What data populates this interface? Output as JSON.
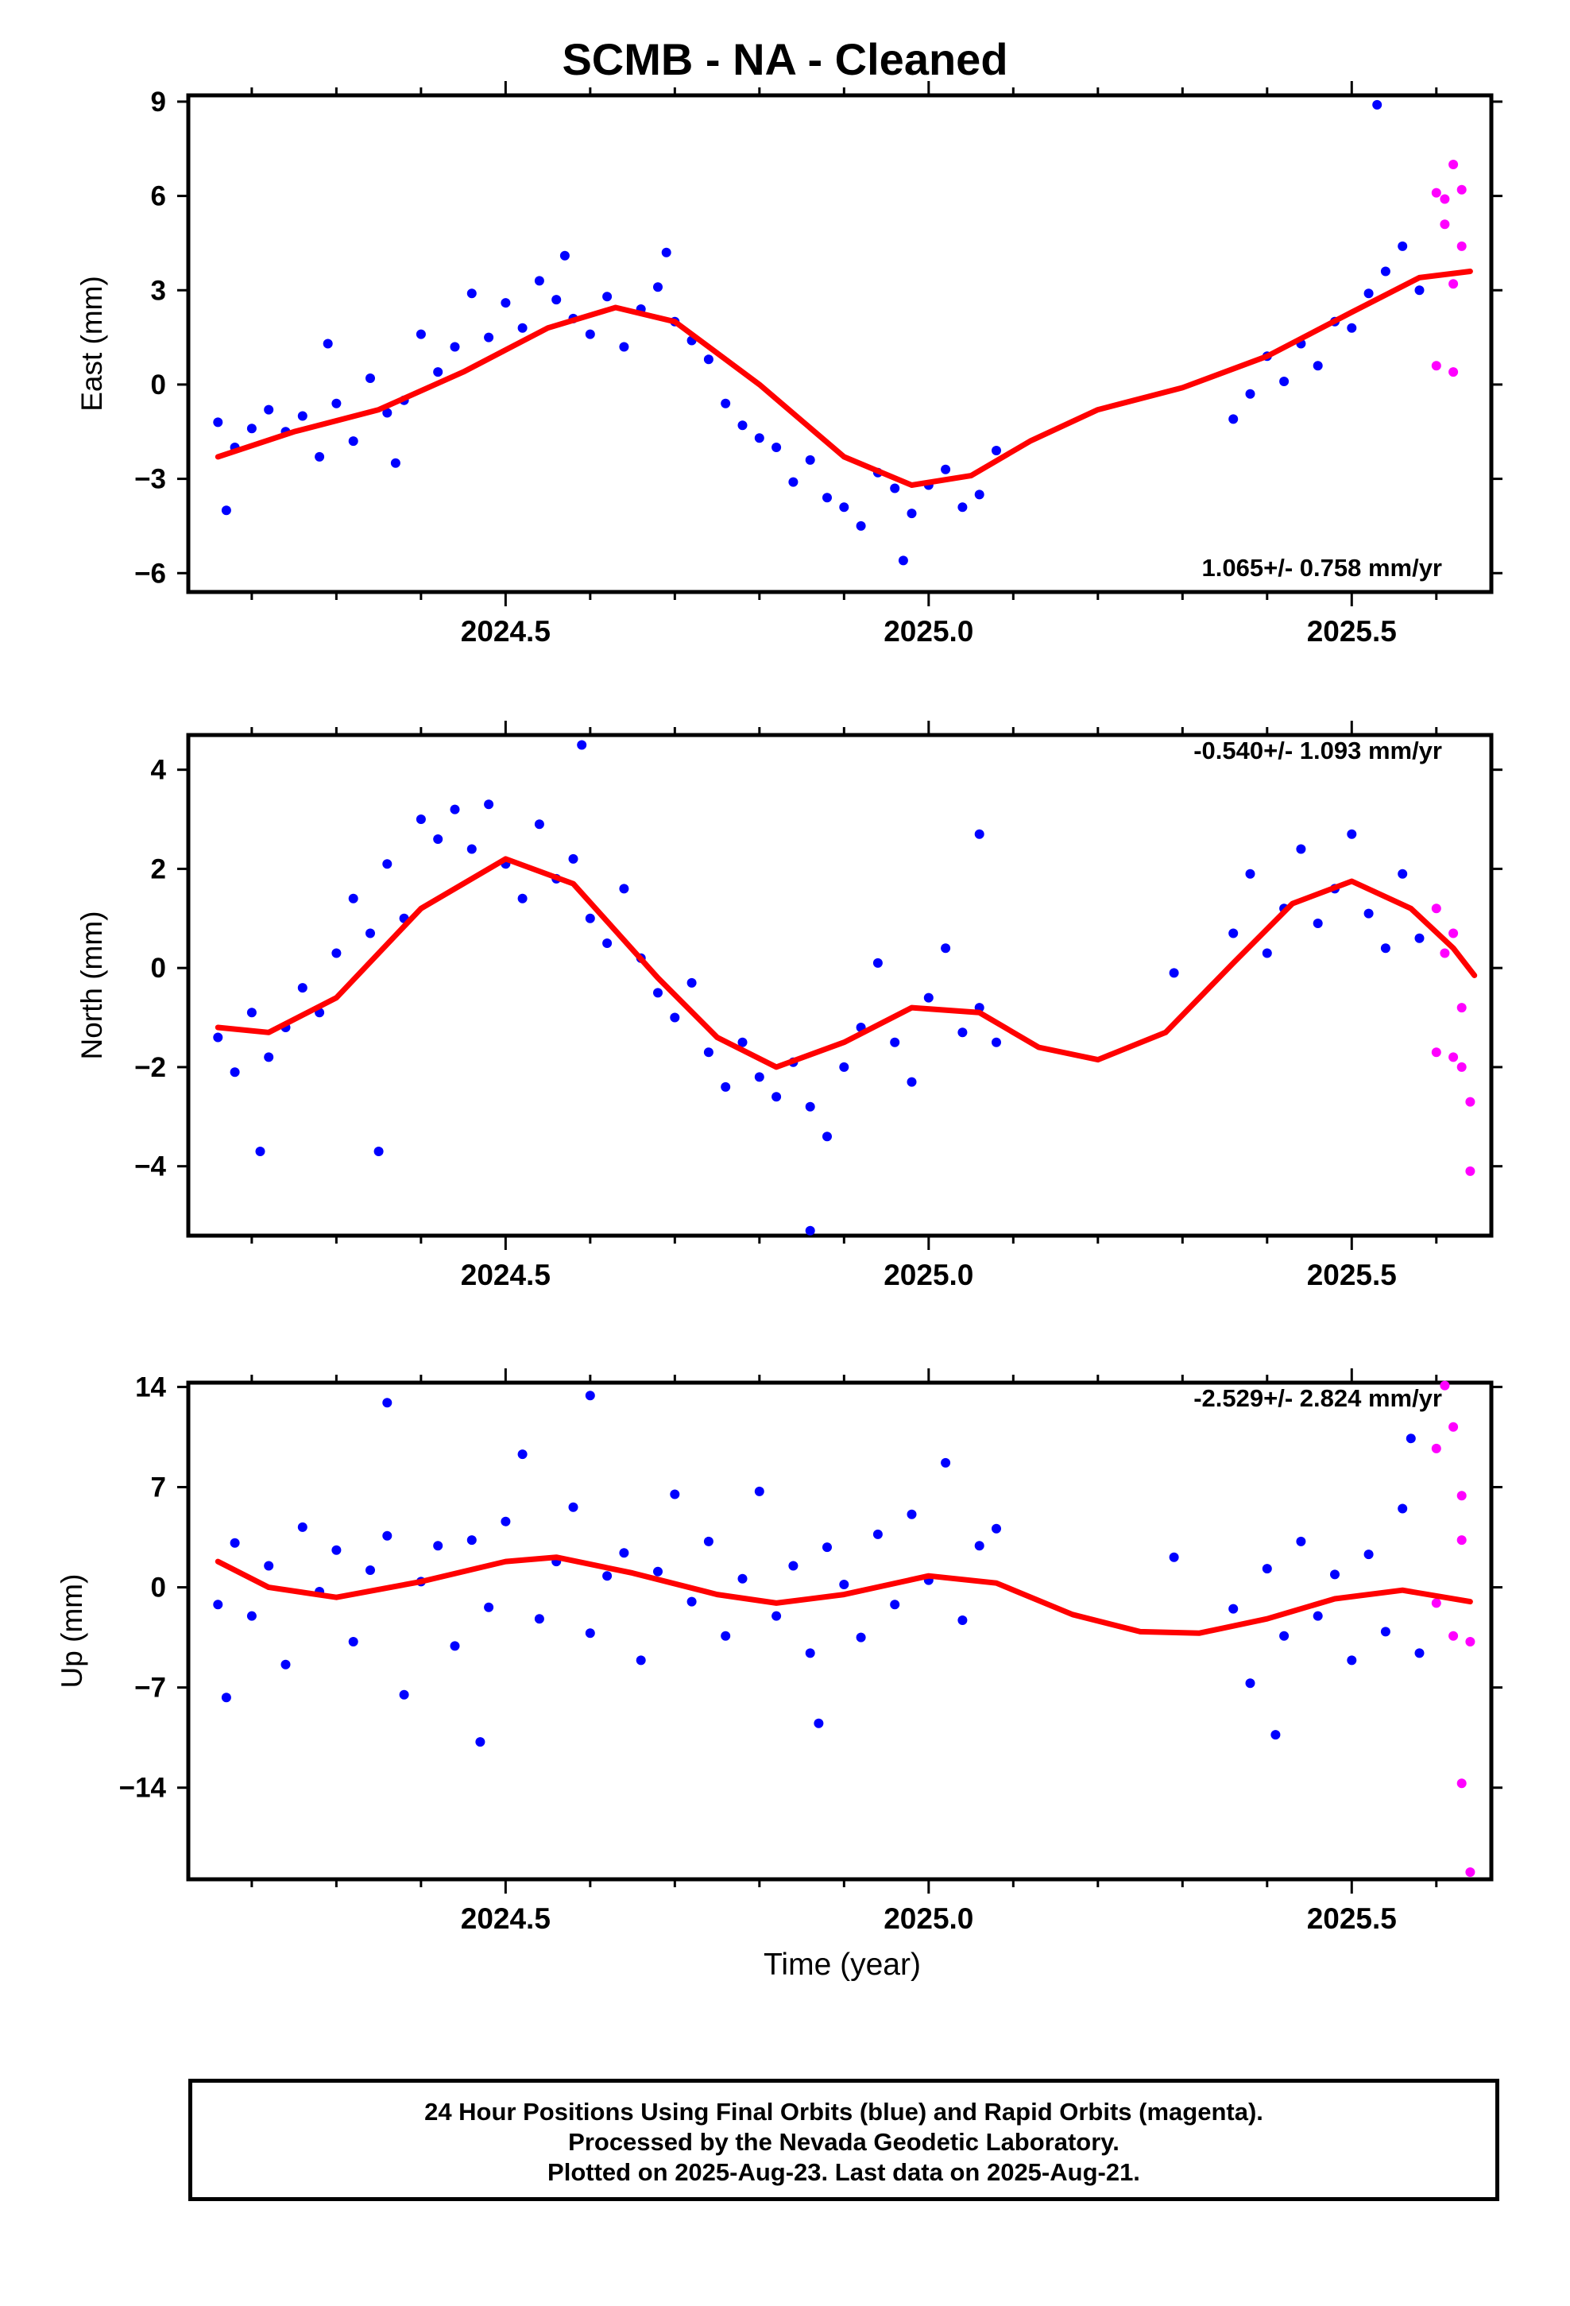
{
  "title": "SCMB  - NA - Cleaned",
  "xlabel": "Time (year)",
  "footer": {
    "line1": "24 Hour Positions Using Final Orbits (blue) and Rapid Orbits (magenta).",
    "line2": "Processed by the Nevada Geodetic Laboratory.",
    "line3": "Plotted on 2025-Aug-23. Last data on 2025-Aug-21."
  },
  "colors": {
    "final": "#0000ff",
    "rapid": "#ff00ff",
    "model": "#ff0000"
  },
  "chart_data": [
    {
      "type": "scatter",
      "ylabel": "East (mm)",
      "annotation": "1.065+/- 0.758 mm/yr",
      "annotation_position": "bottom-right",
      "xlim": [
        2024.125,
        2025.665
      ],
      "ylim": [
        -6.6,
        9.2
      ],
      "yticks": [
        -6,
        -3,
        0,
        3,
        6,
        9
      ],
      "xticks": [
        2024.5,
        2025.0,
        2025.5
      ],
      "xtick_labels": [
        "2024.5",
        "2025.0",
        "2025.5"
      ],
      "series": [
        {
          "role": "final",
          "x": [
            2024.16,
            2024.18,
            2024.2,
            2024.22,
            2024.24,
            2024.26,
            2024.28,
            2024.3,
            2024.32,
            2024.34,
            2024.36,
            2024.38,
            2024.4,
            2024.42,
            2024.44,
            2024.46,
            2024.48,
            2024.5,
            2024.52,
            2024.54,
            2024.56,
            2024.58,
            2024.6,
            2024.62,
            2024.64,
            2024.66,
            2024.68,
            2024.7,
            2024.72,
            2024.74,
            2024.76,
            2024.78,
            2024.8,
            2024.82,
            2024.84,
            2024.86,
            2024.88,
            2024.9,
            2024.92,
            2024.94,
            2024.96,
            2024.98,
            2025.0,
            2025.02,
            2025.04,
            2025.06,
            2025.08,
            2025.36,
            2025.38,
            2025.4,
            2025.42,
            2025.44,
            2025.46,
            2025.48,
            2025.5,
            2025.52,
            2025.54,
            2025.56,
            2025.58,
            2024.17,
            2024.29,
            2024.37,
            2024.57,
            2024.69,
            2024.97,
            2025.53
          ],
          "y": [
            -1.2,
            -2.0,
            -1.4,
            -0.8,
            -1.5,
            -1.0,
            -2.3,
            -0.6,
            -1.8,
            0.2,
            -0.9,
            -0.5,
            1.6,
            0.4,
            1.2,
            2.9,
            1.5,
            2.6,
            1.8,
            3.3,
            2.7,
            2.1,
            1.6,
            2.8,
            1.2,
            2.4,
            3.1,
            2.0,
            1.4,
            0.8,
            -0.6,
            -1.3,
            -1.7,
            -2.0,
            -3.1,
            -2.4,
            -3.6,
            -3.9,
            -4.5,
            -2.8,
            -3.3,
            -4.1,
            -3.2,
            -2.7,
            -3.9,
            -3.5,
            -2.1,
            -1.1,
            -0.3,
            0.9,
            0.1,
            1.3,
            0.6,
            2.0,
            1.8,
            2.9,
            3.6,
            4.4,
            3.0,
            -4.0,
            1.3,
            -2.5,
            4.1,
            4.2,
            -5.6,
            8.9
          ]
        },
        {
          "role": "rapid",
          "x": [
            2025.6,
            2025.61,
            2025.62,
            2025.63,
            2025.6,
            2025.62,
            2025.63,
            2025.61,
            2025.62
          ],
          "y": [
            6.1,
            5.1,
            7.0,
            4.4,
            0.6,
            0.4,
            6.2,
            5.9,
            3.2
          ]
        },
        {
          "role": "model",
          "x": [
            2024.16,
            2024.25,
            2024.35,
            2024.45,
            2024.55,
            2024.63,
            2024.7,
            2024.8,
            2024.9,
            2024.98,
            2025.05,
            2025.12,
            2025.2,
            2025.3,
            2025.4,
            2025.5,
            2025.58,
            2025.64
          ],
          "y": [
            -2.3,
            -1.5,
            -0.8,
            0.4,
            1.8,
            2.45,
            2.0,
            0.0,
            -2.3,
            -3.2,
            -2.9,
            -1.8,
            -0.8,
            -0.1,
            0.9,
            2.3,
            3.4,
            3.6
          ]
        }
      ]
    },
    {
      "type": "scatter",
      "ylabel": "North (mm)",
      "annotation": "-0.540+/- 1.093 mm/yr",
      "annotation_position": "top-right",
      "xlim": [
        2024.125,
        2025.665
      ],
      "ylim": [
        -5.4,
        4.7
      ],
      "yticks": [
        -4,
        -2,
        0,
        2,
        4
      ],
      "xticks": [
        2024.5,
        2025.0,
        2025.5
      ],
      "xtick_labels": [
        "2024.5",
        "2025.0",
        "2025.5"
      ],
      "series": [
        {
          "role": "final",
          "x": [
            2024.16,
            2024.18,
            2024.2,
            2024.22,
            2024.24,
            2024.26,
            2024.28,
            2024.3,
            2024.32,
            2024.34,
            2024.36,
            2024.38,
            2024.4,
            2024.42,
            2024.44,
            2024.46,
            2024.48,
            2024.5,
            2024.52,
            2024.54,
            2024.56,
            2024.58,
            2024.6,
            2024.62,
            2024.64,
            2024.66,
            2024.68,
            2024.7,
            2024.72,
            2024.74,
            2024.76,
            2024.78,
            2024.8,
            2024.82,
            2024.84,
            2024.86,
            2024.88,
            2024.9,
            2024.92,
            2024.94,
            2024.96,
            2024.98,
            2025.0,
            2025.02,
            2025.04,
            2025.06,
            2025.08,
            2025.36,
            2025.38,
            2025.4,
            2025.42,
            2025.44,
            2025.46,
            2025.48,
            2025.5,
            2025.52,
            2025.54,
            2025.56,
            2025.58,
            2024.21,
            2024.35,
            2024.59,
            2024.86,
            2025.06,
            2025.29
          ],
          "y": [
            -1.4,
            -2.1,
            -0.9,
            -1.8,
            -1.2,
            -0.4,
            -0.9,
            0.3,
            1.4,
            0.7,
            2.1,
            1.0,
            3.0,
            2.6,
            3.2,
            2.4,
            3.3,
            2.1,
            1.4,
            2.9,
            1.8,
            2.2,
            1.0,
            0.5,
            1.6,
            0.2,
            -0.5,
            -1.0,
            -0.3,
            -1.7,
            -2.4,
            -1.5,
            -2.2,
            -2.6,
            -1.9,
            -2.8,
            -3.4,
            -2.0,
            -1.2,
            0.1,
            -1.5,
            -2.3,
            -0.6,
            0.4,
            -1.3,
            -0.8,
            -1.5,
            0.7,
            1.9,
            0.3,
            1.2,
            2.4,
            0.9,
            1.6,
            2.7,
            1.1,
            0.4,
            1.9,
            0.6,
            -3.7,
            -3.7,
            4.5,
            -5.3,
            2.7,
            -0.1
          ]
        },
        {
          "role": "rapid",
          "x": [
            2025.6,
            2025.61,
            2025.62,
            2025.63,
            2025.6,
            2025.62,
            2025.63,
            2025.64,
            2025.64
          ],
          "y": [
            1.2,
            0.3,
            0.7,
            -0.8,
            -1.7,
            -1.8,
            -2.0,
            -2.7,
            -4.1
          ]
        },
        {
          "role": "model",
          "x": [
            2024.16,
            2024.22,
            2024.3,
            2024.4,
            2024.5,
            2024.58,
            2024.68,
            2024.75,
            2024.82,
            2024.9,
            2024.98,
            2025.06,
            2025.13,
            2025.2,
            2025.28,
            2025.36,
            2025.43,
            2025.5,
            2025.57,
            2025.62,
            2025.645
          ],
          "y": [
            -1.2,
            -1.3,
            -0.6,
            1.2,
            2.2,
            1.7,
            -0.2,
            -1.4,
            -2.0,
            -1.5,
            -0.8,
            -0.9,
            -1.6,
            -1.85,
            -1.3,
            0.1,
            1.3,
            1.75,
            1.2,
            0.4,
            -0.15
          ]
        }
      ]
    },
    {
      "type": "scatter",
      "ylabel": "Up (mm)",
      "annotation": "-2.529+/- 2.824 mm/yr",
      "annotation_position": "top-right",
      "xlim": [
        2024.125,
        2025.665
      ],
      "ylim": [
        -20.4,
        14.3
      ],
      "yticks": [
        -14,
        -7,
        0,
        7,
        14
      ],
      "xticks": [
        2024.5,
        2025.0,
        2025.5
      ],
      "xtick_labels": [
        "2024.5",
        "2025.0",
        "2025.5"
      ],
      "series": [
        {
          "role": "final",
          "x": [
            2024.16,
            2024.18,
            2024.2,
            2024.22,
            2024.24,
            2024.26,
            2024.28,
            2024.3,
            2024.32,
            2024.34,
            2024.36,
            2024.38,
            2024.4,
            2024.42,
            2024.44,
            2024.46,
            2024.48,
            2024.5,
            2024.52,
            2024.54,
            2024.56,
            2024.58,
            2024.6,
            2024.62,
            2024.64,
            2024.66,
            2024.68,
            2024.7,
            2024.72,
            2024.74,
            2024.76,
            2024.78,
            2024.8,
            2024.82,
            2024.84,
            2024.86,
            2024.88,
            2024.9,
            2024.92,
            2024.94,
            2024.96,
            2024.98,
            2025.0,
            2025.02,
            2025.04,
            2025.06,
            2025.08,
            2025.36,
            2025.38,
            2025.4,
            2025.42,
            2025.44,
            2025.46,
            2025.48,
            2025.5,
            2025.52,
            2025.54,
            2025.56,
            2025.58,
            2024.17,
            2024.36,
            2024.47,
            2024.6,
            2024.87,
            2025.29,
            2025.41,
            2025.57
          ],
          "y": [
            -1.2,
            3.1,
            -2.0,
            1.5,
            -5.4,
            4.2,
            -0.3,
            2.6,
            -3.8,
            1.2,
            3.6,
            -7.5,
            0.4,
            2.9,
            -4.1,
            3.3,
            -1.4,
            4.6,
            9.3,
            -2.2,
            1.8,
            5.6,
            -3.2,
            0.8,
            2.4,
            -5.1,
            1.1,
            6.5,
            -1.0,
            3.2,
            -3.4,
            0.6,
            6.7,
            -2.0,
            1.5,
            -4.6,
            2.8,
            0.2,
            -3.5,
            3.7,
            -1.2,
            5.1,
            0.5,
            8.7,
            -2.3,
            2.9,
            4.1,
            -1.5,
            -6.7,
            1.3,
            -3.4,
            3.2,
            -2.0,
            0.9,
            -5.1,
            2.3,
            -3.1,
            5.5,
            -4.6,
            -7.7,
            12.9,
            -10.8,
            13.4,
            -9.5,
            2.1,
            -10.3,
            10.4
          ]
        },
        {
          "role": "rapid",
          "x": [
            2025.6,
            2025.61,
            2025.62,
            2025.63,
            2025.6,
            2025.62,
            2025.63,
            2025.63,
            2025.64,
            2025.64
          ],
          "y": [
            9.7,
            14.1,
            11.2,
            6.4,
            -1.1,
            -3.4,
            3.3,
            -13.7,
            -3.8,
            -19.9
          ]
        },
        {
          "role": "model",
          "x": [
            2024.16,
            2024.22,
            2024.3,
            2024.4,
            2024.5,
            2024.56,
            2024.65,
            2024.75,
            2024.82,
            2024.9,
            2025.0,
            2025.08,
            2025.17,
            2025.25,
            2025.32,
            2025.4,
            2025.48,
            2025.56,
            2025.64
          ],
          "y": [
            1.8,
            0.0,
            -0.7,
            0.4,
            1.8,
            2.1,
            1.0,
            -0.5,
            -1.1,
            -0.5,
            0.8,
            0.3,
            -1.9,
            -3.1,
            -3.2,
            -2.2,
            -0.8,
            -0.2,
            -1.0
          ]
        }
      ]
    }
  ]
}
